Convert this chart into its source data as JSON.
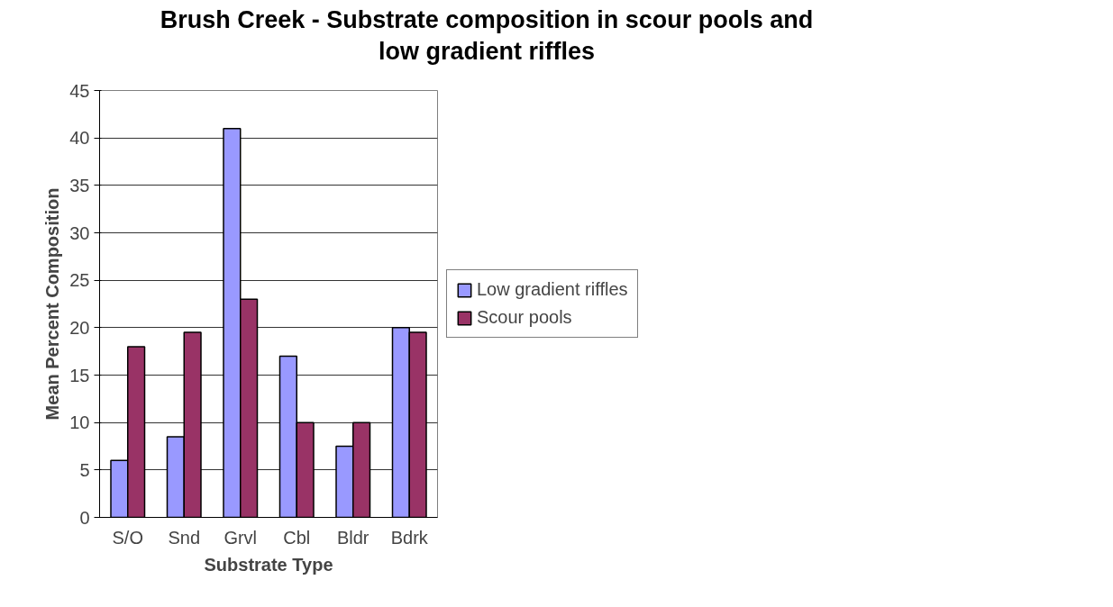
{
  "chart_data": {
    "type": "bar",
    "title": "Brush Creek - Substrate composition in scour pools and\nlow gradient riffles",
    "xlabel": "Substrate Type",
    "ylabel": "Mean Percent Composition",
    "categories": [
      "S/O",
      "Snd",
      "Grvl",
      "Cbl",
      "Bldr",
      "Bdrk"
    ],
    "series": [
      {
        "name": "Low gradient riffles",
        "color": "#9999ff",
        "values": [
          6,
          8.5,
          41,
          17,
          7.5,
          20
        ]
      },
      {
        "name": "Scour pools",
        "color": "#993366",
        "values": [
          18,
          19.5,
          23,
          10,
          10,
          19.5
        ]
      }
    ],
    "ylim": [
      0,
      45
    ],
    "yticks": [
      0,
      5,
      10,
      15,
      20,
      25,
      30,
      35,
      40,
      45
    ],
    "grid": "y",
    "legend": "right"
  }
}
